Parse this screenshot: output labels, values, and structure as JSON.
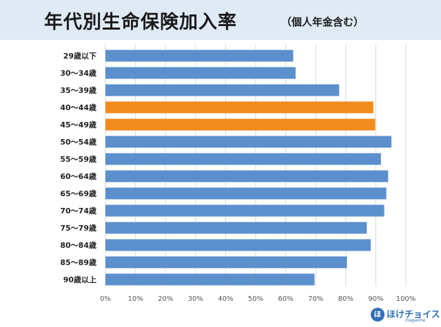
{
  "header": {
    "title": "年代別生命保険加入率",
    "subtitle": "（個人年金含む）"
  },
  "logo": {
    "mark": "ほ",
    "text": "ほけチョイス",
    "sub": "magazine"
  },
  "colors": {
    "default_bar": "#5b90cc",
    "highlight_bar": "#f28c1f",
    "grid": "#d9d9d9"
  },
  "chart_data": {
    "type": "bar",
    "orientation": "horizontal",
    "categories": [
      "29歳以下",
      "30〜34歳",
      "35〜39歳",
      "40〜44歳",
      "45〜49歳",
      "50〜54歳",
      "55〜59歳",
      "60〜64歳",
      "65〜69歳",
      "70〜74歳",
      "75〜79歳",
      "80〜84歳",
      "85〜89歳",
      "90歳以上"
    ],
    "values": [
      62.5,
      63.3,
      77.8,
      89.2,
      89.8,
      95.2,
      91.7,
      94.1,
      93.5,
      92.8,
      87.0,
      88.3,
      80.4,
      69.6
    ],
    "highlighted": [
      "40〜44歳",
      "45〜49歳"
    ],
    "xlim": [
      0,
      100
    ],
    "xticks": [
      "0%",
      "10%",
      "20%",
      "30%",
      "40%",
      "50%",
      "60%",
      "70%",
      "80%",
      "90%",
      "100%"
    ],
    "grid": true,
    "xlabel": "",
    "ylabel": ""
  }
}
